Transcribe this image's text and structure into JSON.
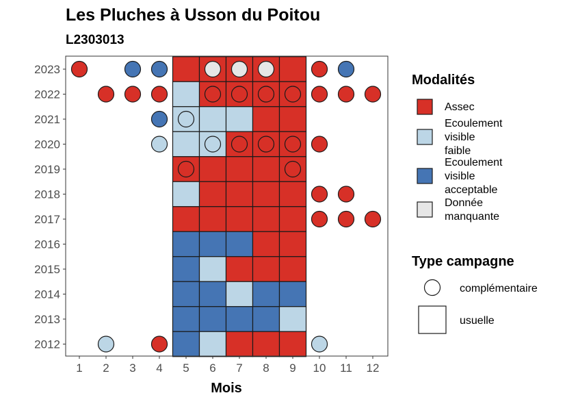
{
  "chart_data": {
    "type": "heatmap",
    "title": "Les Pluches à Usson du Poitou",
    "subtitle": "L2303013",
    "xlabel": "Mois",
    "ylabel": "",
    "x_categories": [
      "1",
      "2",
      "3",
      "4",
      "5",
      "6",
      "7",
      "8",
      "9",
      "10",
      "11",
      "12"
    ],
    "y_categories": [
      "2023",
      "2022",
      "2021",
      "2020",
      "2019",
      "2018",
      "2017",
      "2016",
      "2015",
      "2014",
      "2013",
      "2012"
    ],
    "modalites": [
      {
        "key": "A",
        "label_lines": [
          "Assec"
        ],
        "color": "#d73027"
      },
      {
        "key": "F",
        "label_lines": [
          "Ecoulement",
          "visible",
          "faible"
        ],
        "color": "#bcd6e6"
      },
      {
        "key": "V",
        "label_lines": [
          "Ecoulement",
          "visible",
          "acceptable"
        ],
        "color": "#4575b4"
      },
      {
        "key": "M",
        "label_lines": [
          "Donnée",
          "manquante"
        ],
        "color": "#e6e6e6"
      }
    ],
    "legend_modalites_title": "Modalités",
    "legend_campagne_title": "Type campagne",
    "campagne_types": [
      {
        "key": "complementaire",
        "label": "complémentaire",
        "shape": "circle"
      },
      {
        "key": "usuelle",
        "label": "usuelle",
        "shape": "square"
      }
    ],
    "observations": [
      {
        "year": "2023",
        "month": 1,
        "mod": "A",
        "camp": "complementaire"
      },
      {
        "year": "2023",
        "month": 3,
        "mod": "V",
        "camp": "complementaire"
      },
      {
        "year": "2023",
        "month": 4,
        "mod": "V",
        "camp": "complementaire"
      },
      {
        "year": "2023",
        "month": 5,
        "mod": "A",
        "camp": "usuelle"
      },
      {
        "year": "2023",
        "month": 6,
        "mod": "A",
        "camp": "usuelle"
      },
      {
        "year": "2023",
        "month": 6,
        "mod": "M",
        "camp": "complementaire"
      },
      {
        "year": "2023",
        "month": 7,
        "mod": "A",
        "camp": "usuelle"
      },
      {
        "year": "2023",
        "month": 7,
        "mod": "M",
        "camp": "complementaire"
      },
      {
        "year": "2023",
        "month": 8,
        "mod": "A",
        "camp": "usuelle"
      },
      {
        "year": "2023",
        "month": 8,
        "mod": "M",
        "camp": "complementaire"
      },
      {
        "year": "2023",
        "month": 9,
        "mod": "A",
        "camp": "usuelle"
      },
      {
        "year": "2023",
        "month": 10,
        "mod": "A",
        "camp": "complementaire"
      },
      {
        "year": "2023",
        "month": 11,
        "mod": "V",
        "camp": "complementaire"
      },
      {
        "year": "2022",
        "month": 2,
        "mod": "A",
        "camp": "complementaire"
      },
      {
        "year": "2022",
        "month": 3,
        "mod": "A",
        "camp": "complementaire"
      },
      {
        "year": "2022",
        "month": 4,
        "mod": "A",
        "camp": "complementaire"
      },
      {
        "year": "2022",
        "month": 5,
        "mod": "F",
        "camp": "usuelle"
      },
      {
        "year": "2022",
        "month": 6,
        "mod": "A",
        "camp": "usuelle"
      },
      {
        "year": "2022",
        "month": 6,
        "mod": "A",
        "camp": "complementaire"
      },
      {
        "year": "2022",
        "month": 7,
        "mod": "A",
        "camp": "usuelle"
      },
      {
        "year": "2022",
        "month": 7,
        "mod": "A",
        "camp": "complementaire"
      },
      {
        "year": "2022",
        "month": 8,
        "mod": "A",
        "camp": "usuelle"
      },
      {
        "year": "2022",
        "month": 8,
        "mod": "A",
        "camp": "complementaire"
      },
      {
        "year": "2022",
        "month": 9,
        "mod": "A",
        "camp": "usuelle"
      },
      {
        "year": "2022",
        "month": 9,
        "mod": "A",
        "camp": "complementaire"
      },
      {
        "year": "2022",
        "month": 10,
        "mod": "A",
        "camp": "complementaire"
      },
      {
        "year": "2022",
        "month": 11,
        "mod": "A",
        "camp": "complementaire"
      },
      {
        "year": "2022",
        "month": 12,
        "mod": "A",
        "camp": "complementaire"
      },
      {
        "year": "2021",
        "month": 4,
        "mod": "V",
        "camp": "complementaire"
      },
      {
        "year": "2021",
        "month": 5,
        "mod": "F",
        "camp": "usuelle"
      },
      {
        "year": "2021",
        "month": 5,
        "mod": "F",
        "camp": "complementaire"
      },
      {
        "year": "2021",
        "month": 6,
        "mod": "F",
        "camp": "usuelle"
      },
      {
        "year": "2021",
        "month": 7,
        "mod": "F",
        "camp": "usuelle"
      },
      {
        "year": "2021",
        "month": 8,
        "mod": "A",
        "camp": "usuelle"
      },
      {
        "year": "2021",
        "month": 9,
        "mod": "A",
        "camp": "usuelle"
      },
      {
        "year": "2020",
        "month": 4,
        "mod": "F",
        "camp": "complementaire"
      },
      {
        "year": "2020",
        "month": 5,
        "mod": "F",
        "camp": "usuelle"
      },
      {
        "year": "2020",
        "month": 6,
        "mod": "F",
        "camp": "usuelle"
      },
      {
        "year": "2020",
        "month": 6,
        "mod": "F",
        "camp": "complementaire"
      },
      {
        "year": "2020",
        "month": 7,
        "mod": "A",
        "camp": "usuelle"
      },
      {
        "year": "2020",
        "month": 7,
        "mod": "A",
        "camp": "complementaire"
      },
      {
        "year": "2020",
        "month": 8,
        "mod": "A",
        "camp": "usuelle"
      },
      {
        "year": "2020",
        "month": 8,
        "mod": "A",
        "camp": "complementaire"
      },
      {
        "year": "2020",
        "month": 9,
        "mod": "A",
        "camp": "usuelle"
      },
      {
        "year": "2020",
        "month": 9,
        "mod": "A",
        "camp": "complementaire"
      },
      {
        "year": "2020",
        "month": 10,
        "mod": "A",
        "camp": "complementaire"
      },
      {
        "year": "2019",
        "month": 5,
        "mod": "A",
        "camp": "usuelle"
      },
      {
        "year": "2019",
        "month": 5,
        "mod": "A",
        "camp": "complementaire"
      },
      {
        "year": "2019",
        "month": 6,
        "mod": "A",
        "camp": "usuelle"
      },
      {
        "year": "2019",
        "month": 7,
        "mod": "A",
        "camp": "usuelle"
      },
      {
        "year": "2019",
        "month": 8,
        "mod": "A",
        "camp": "usuelle"
      },
      {
        "year": "2019",
        "month": 9,
        "mod": "A",
        "camp": "usuelle"
      },
      {
        "year": "2019",
        "month": 9,
        "mod": "A",
        "camp": "complementaire"
      },
      {
        "year": "2018",
        "month": 5,
        "mod": "F",
        "camp": "usuelle"
      },
      {
        "year": "2018",
        "month": 6,
        "mod": "A",
        "camp": "usuelle"
      },
      {
        "year": "2018",
        "month": 7,
        "mod": "A",
        "camp": "usuelle"
      },
      {
        "year": "2018",
        "month": 8,
        "mod": "A",
        "camp": "usuelle"
      },
      {
        "year": "2018",
        "month": 9,
        "mod": "A",
        "camp": "usuelle"
      },
      {
        "year": "2018",
        "month": 10,
        "mod": "A",
        "camp": "complementaire"
      },
      {
        "year": "2018",
        "month": 11,
        "mod": "A",
        "camp": "complementaire"
      },
      {
        "year": "2017",
        "month": 5,
        "mod": "A",
        "camp": "usuelle"
      },
      {
        "year": "2017",
        "month": 6,
        "mod": "A",
        "camp": "usuelle"
      },
      {
        "year": "2017",
        "month": 7,
        "mod": "A",
        "camp": "usuelle"
      },
      {
        "year": "2017",
        "month": 8,
        "mod": "A",
        "camp": "usuelle"
      },
      {
        "year": "2017",
        "month": 9,
        "mod": "A",
        "camp": "usuelle"
      },
      {
        "year": "2017",
        "month": 10,
        "mod": "A",
        "camp": "complementaire"
      },
      {
        "year": "2017",
        "month": 11,
        "mod": "A",
        "camp": "complementaire"
      },
      {
        "year": "2017",
        "month": 12,
        "mod": "A",
        "camp": "complementaire"
      },
      {
        "year": "2016",
        "month": 5,
        "mod": "V",
        "camp": "usuelle"
      },
      {
        "year": "2016",
        "month": 6,
        "mod": "V",
        "camp": "usuelle"
      },
      {
        "year": "2016",
        "month": 7,
        "mod": "V",
        "camp": "usuelle"
      },
      {
        "year": "2016",
        "month": 8,
        "mod": "A",
        "camp": "usuelle"
      },
      {
        "year": "2016",
        "month": 9,
        "mod": "A",
        "camp": "usuelle"
      },
      {
        "year": "2015",
        "month": 5,
        "mod": "V",
        "camp": "usuelle"
      },
      {
        "year": "2015",
        "month": 6,
        "mod": "F",
        "camp": "usuelle"
      },
      {
        "year": "2015",
        "month": 7,
        "mod": "A",
        "camp": "usuelle"
      },
      {
        "year": "2015",
        "month": 8,
        "mod": "A",
        "camp": "usuelle"
      },
      {
        "year": "2015",
        "month": 9,
        "mod": "A",
        "camp": "usuelle"
      },
      {
        "year": "2014",
        "month": 5,
        "mod": "V",
        "camp": "usuelle"
      },
      {
        "year": "2014",
        "month": 6,
        "mod": "V",
        "camp": "usuelle"
      },
      {
        "year": "2014",
        "month": 7,
        "mod": "F",
        "camp": "usuelle"
      },
      {
        "year": "2014",
        "month": 8,
        "mod": "V",
        "camp": "usuelle"
      },
      {
        "year": "2014",
        "month": 9,
        "mod": "V",
        "camp": "usuelle"
      },
      {
        "year": "2013",
        "month": 5,
        "mod": "V",
        "camp": "usuelle"
      },
      {
        "year": "2013",
        "month": 6,
        "mod": "V",
        "camp": "usuelle"
      },
      {
        "year": "2013",
        "month": 7,
        "mod": "V",
        "camp": "usuelle"
      },
      {
        "year": "2013",
        "month": 8,
        "mod": "V",
        "camp": "usuelle"
      },
      {
        "year": "2013",
        "month": 9,
        "mod": "F",
        "camp": "usuelle"
      },
      {
        "year": "2012",
        "month": 2,
        "mod": "F",
        "camp": "complementaire"
      },
      {
        "year": "2012",
        "month": 4,
        "mod": "A",
        "camp": "complementaire"
      },
      {
        "year": "2012",
        "month": 5,
        "mod": "V",
        "camp": "usuelle"
      },
      {
        "year": "2012",
        "month": 6,
        "mod": "F",
        "camp": "usuelle"
      },
      {
        "year": "2012",
        "month": 7,
        "mod": "A",
        "camp": "usuelle"
      },
      {
        "year": "2012",
        "month": 8,
        "mod": "A",
        "camp": "usuelle"
      },
      {
        "year": "2012",
        "month": 9,
        "mod": "A",
        "camp": "usuelle"
      },
      {
        "year": "2012",
        "month": 10,
        "mod": "F",
        "camp": "complementaire"
      }
    ]
  }
}
